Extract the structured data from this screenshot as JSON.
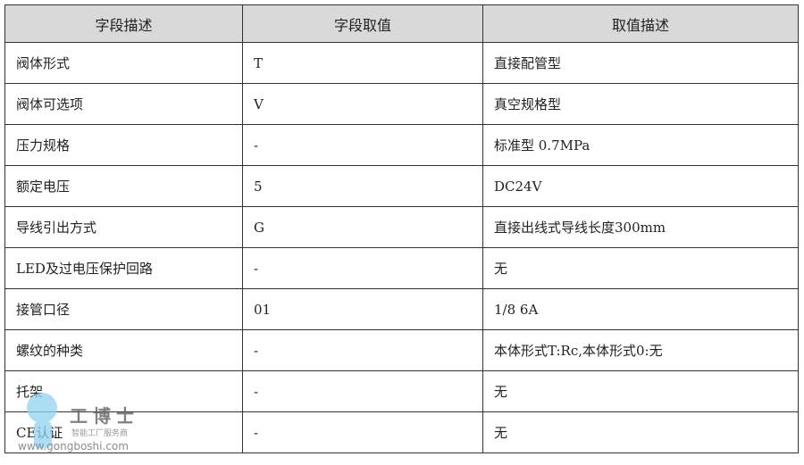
{
  "table": {
    "headers": [
      "字段描述",
      "字段取值",
      "取值描述"
    ],
    "rows": [
      [
        "阀体形式",
        "T",
        "直接配管型"
      ],
      [
        "阀体可选项",
        "V",
        "真空规格型"
      ],
      [
        "压力规格",
        "-",
        "标准型 0.7MPa"
      ],
      [
        "额定电压",
        "5",
        "DC24V"
      ],
      [
        "导线引出方式",
        "G",
        "直接出线式导线长度300mm"
      ],
      [
        "LED及过电压保护回路",
        "-",
        "无"
      ],
      [
        "接管口径",
        "01",
        "1/8 6A"
      ],
      [
        "螺纹的种类",
        "-",
        "本体形式T:Rc,本体形式0:无"
      ],
      [
        "托架",
        "-",
        "无"
      ],
      [
        "CE认证",
        "-",
        "无"
      ]
    ]
  },
  "watermark": {
    "name": "工博士",
    "slogan": "智能工厂服务商",
    "site": "www.gongboshi.com"
  },
  "colors": {
    "header_bg": "#d9d9d9",
    "border": "#333333"
  }
}
